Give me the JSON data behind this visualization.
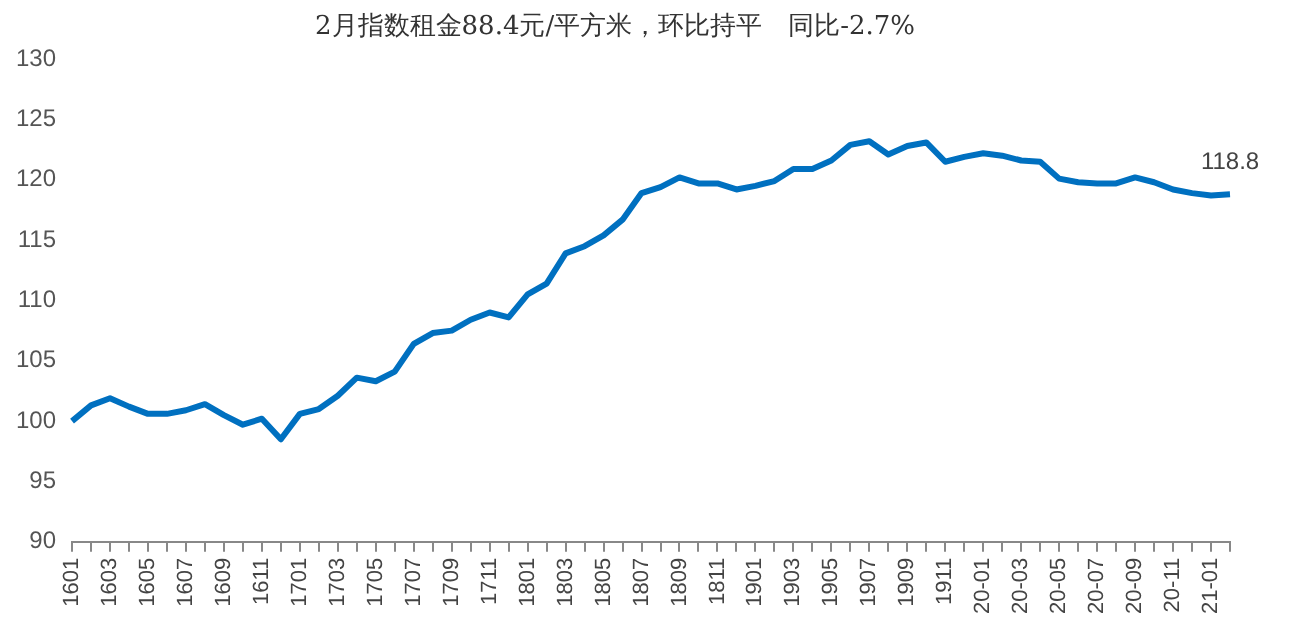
{
  "chart_data": {
    "type": "line",
    "title": "2月指数租金88.4元/平方米，环比持平　同比-2.7%",
    "categories": [
      "1601",
      null,
      "1603",
      null,
      "1605",
      null,
      "1607",
      null,
      "1609",
      null,
      "1611",
      null,
      "1701",
      null,
      "1703",
      null,
      "1705",
      null,
      "1707",
      null,
      "1709",
      null,
      "1711",
      null,
      "1801",
      null,
      "1803",
      null,
      "1805",
      null,
      "1807",
      null,
      "1809",
      null,
      "1811",
      null,
      "1901",
      null,
      "1903",
      null,
      "1905",
      null,
      "1907",
      null,
      "1909",
      null,
      "1911",
      null,
      "20-01",
      null,
      "20-03",
      null,
      "20-05",
      null,
      "20-07",
      null,
      "20-09",
      null,
      "20-11",
      null,
      "21-01",
      null
    ],
    "series": [
      {
        "color": "#0070c0",
        "values": [
          100.0,
          101.3,
          101.9,
          101.2,
          100.6,
          100.6,
          100.9,
          101.4,
          100.5,
          99.7,
          100.2,
          98.5,
          100.6,
          101.0,
          102.1,
          103.6,
          103.3,
          104.1,
          106.4,
          107.3,
          107.5,
          108.4,
          109.0,
          108.6,
          110.5,
          111.4,
          113.9,
          114.5,
          115.4,
          116.7,
          118.9,
          119.4,
          120.2,
          119.7,
          119.7,
          119.2,
          119.5,
          119.9,
          120.9,
          120.9,
          121.6,
          122.9,
          123.2,
          122.1,
          122.8,
          123.1,
          121.5,
          121.9,
          122.2,
          122.0,
          121.6,
          121.5,
          120.1,
          119.8,
          119.7,
          119.7,
          120.2,
          119.8,
          119.2,
          118.9,
          118.7,
          118.8
        ],
        "value_labels": [
          null,
          null,
          null,
          null,
          null,
          null,
          null,
          null,
          null,
          null,
          null,
          null,
          null,
          null,
          null,
          null,
          null,
          null,
          null,
          null,
          null,
          null,
          null,
          null,
          null,
          null,
          null,
          null,
          null,
          null,
          null,
          null,
          null,
          null,
          null,
          null,
          null,
          null,
          null,
          null,
          null,
          null,
          null,
          null,
          null,
          null,
          null,
          null,
          null,
          null,
          null,
          null,
          null,
          null,
          null,
          null,
          null,
          null,
          null,
          null,
          null,
          "118.8"
        ]
      }
    ],
    "ylim": [
      90,
      130
    ],
    "yticks": [
      90,
      95,
      100,
      105,
      110,
      115,
      120,
      125,
      130
    ],
    "grid": false,
    "legend": false,
    "marker": "none",
    "line_style": "solid"
  }
}
